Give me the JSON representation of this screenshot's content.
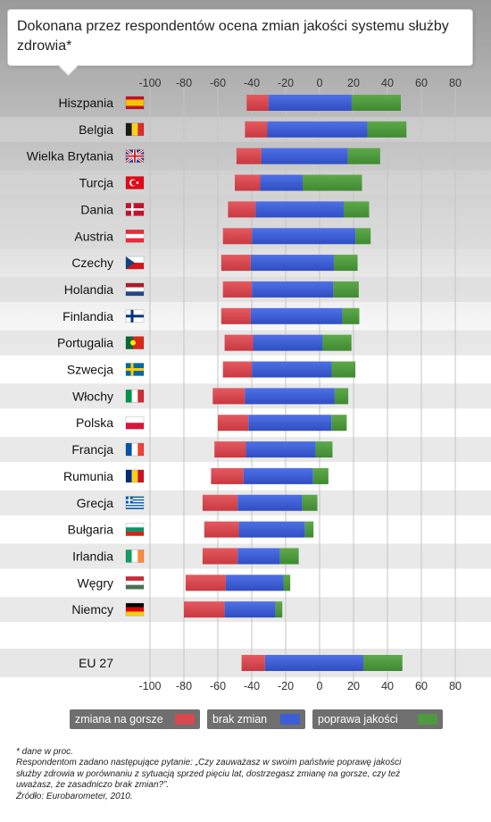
{
  "title": "Dokonana przez respondentów ocena zmian jakości systemu służby zdrowia*",
  "colors": {
    "gorsze": "#d9474f",
    "brak": "#3c5fd6",
    "poprawa": "#4f9a3e"
  },
  "chart_data": {
    "type": "bar",
    "orientation": "horizontal",
    "stacked": true,
    "categories": [
      "Hiszpania",
      "Belgia",
      "Wielka Brytania",
      "Turcja",
      "Dania",
      "Austria",
      "Czechy",
      "Holandia",
      "Finlandia",
      "Portugalia",
      "Szwecja",
      "Włochy",
      "Polska",
      "Francja",
      "Rumunia",
      "Grecja",
      "Bułgaria",
      "Irlandia",
      "Węgry",
      "Niemcy",
      "EU 27"
    ],
    "flags": [
      "es",
      "be",
      "gb",
      "tr",
      "dk",
      "at",
      "cz",
      "nl",
      "fi",
      "pt",
      "se",
      "it",
      "pl",
      "fr",
      "ro",
      "gr",
      "bg",
      "ie",
      "hu",
      "de",
      "eu"
    ],
    "series": [
      {
        "name": "zmiana na gorsze",
        "values": [
          -43,
          -44,
          -49,
          -50,
          -54,
          -57,
          -58,
          -57,
          -58,
          -56,
          -57,
          -63,
          -60,
          -62,
          -64,
          -69,
          -68,
          -69,
          -79,
          -80,
          -46
        ]
      },
      {
        "name": "brak zmian",
        "values": [
          49,
          59,
          51,
          25,
          52,
          61,
          49,
          48,
          54,
          41,
          47,
          53,
          49,
          41,
          41,
          38,
          39,
          25,
          34,
          30,
          58
        ]
      },
      {
        "name": "poprawa jakości",
        "values": [
          29,
          23,
          19,
          35,
          15,
          9,
          14,
          15,
          10,
          17,
          14,
          8,
          9,
          10,
          9,
          9,
          5,
          11,
          4,
          4,
          23
        ]
      }
    ],
    "xlim": [
      -100,
      80
    ],
    "xticks": [
      "-100",
      "-80",
      "-60",
      "-40",
      "-20",
      "0",
      "20",
      "40",
      "60",
      "80"
    ],
    "grid": true
  },
  "legend": {
    "items": [
      "zmiana na gorsze",
      "brak zmian",
      "poprawa jakości"
    ]
  },
  "footnote": {
    "line1": "* dane w proc.",
    "line2": "Respondentom zadano następujące pytanie: „Czy zauważasz w swoim państwie poprawę jakości",
    "line3": "służby zdrowia w porównaniu z sytuacją sprzed pięciu lat, dostrzegasz zmianę na gorsze, czy też",
    "line4": "uważasz, że zasadniczo brak zmian?”.",
    "line5": "Źródło: Eurobarometer, 2010."
  }
}
